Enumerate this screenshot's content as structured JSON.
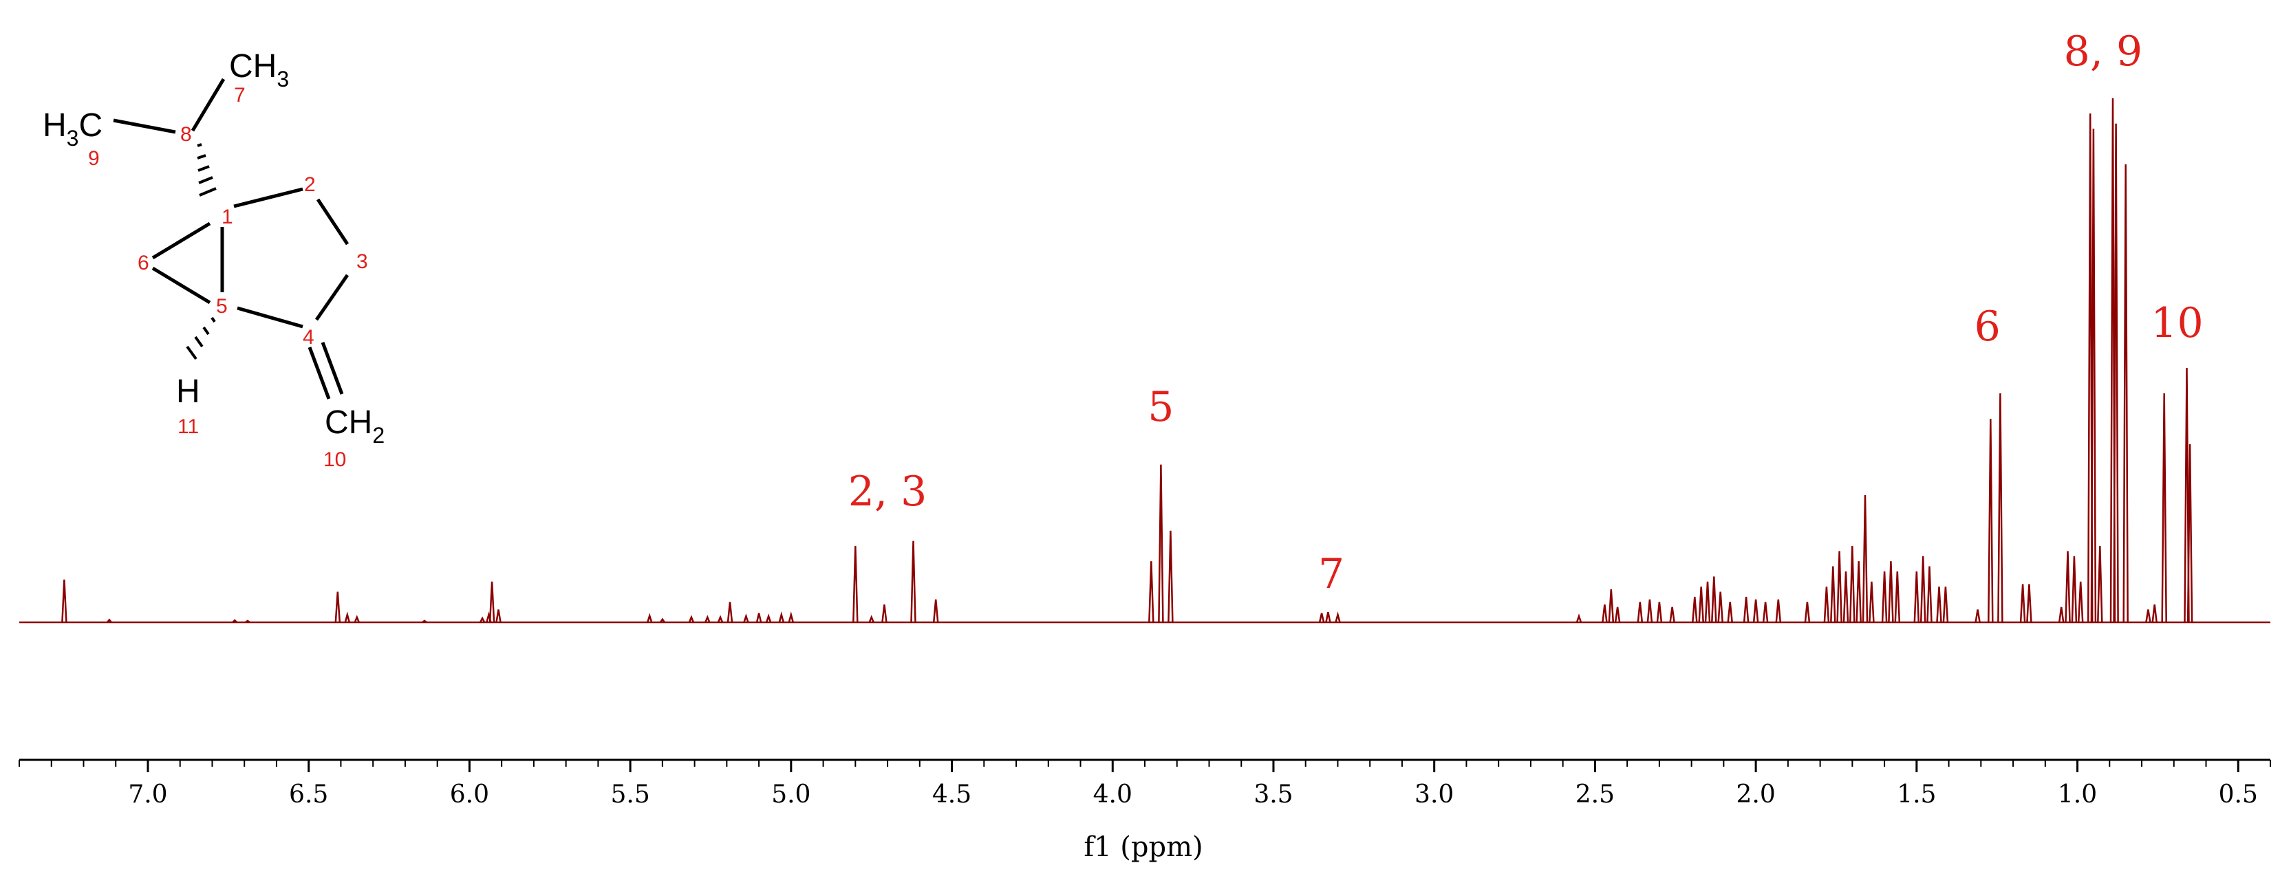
{
  "chart_data": {
    "type": "line",
    "xlabel": "f1 (ppm)",
    "xlim": [
      7.4,
      0.4
    ],
    "x_reversed": true,
    "xticks": [
      "7.0",
      "6.5",
      "6.0",
      "5.5",
      "5.0",
      "4.5",
      "4.0",
      "3.5",
      "3.0",
      "2.5",
      "2.0",
      "1.5",
      "1.0",
      "0.5"
    ],
    "ylabel": "",
    "y_axis_visible": false,
    "grid": false,
    "line_color": "#8b0000",
    "label_color": "#e0201b",
    "series": [
      {
        "values": [
          {
            "x": 7.26,
            "y": 8.4
          },
          {
            "x": 7.12,
            "y": 0.5
          },
          {
            "x": 6.73,
            "y": 0.4
          },
          {
            "x": 6.69,
            "y": 0.3
          },
          {
            "x": 6.41,
            "y": 6.0
          },
          {
            "x": 6.38,
            "y": 1.5
          },
          {
            "x": 6.35,
            "y": 1.0
          },
          {
            "x": 6.14,
            "y": 0.3
          },
          {
            "x": 5.96,
            "y": 0.8
          },
          {
            "x": 5.94,
            "y": 1.5
          },
          {
            "x": 5.93,
            "y": 8.0
          },
          {
            "x": 5.91,
            "y": 2.5
          },
          {
            "x": 5.44,
            "y": 1.3
          },
          {
            "x": 5.4,
            "y": 0.6
          },
          {
            "x": 5.31,
            "y": 1.0
          },
          {
            "x": 5.26,
            "y": 1.0
          },
          {
            "x": 5.22,
            "y": 1.0
          },
          {
            "x": 5.19,
            "y": 4.0
          },
          {
            "x": 5.14,
            "y": 1.2
          },
          {
            "x": 5.1,
            "y": 1.8
          },
          {
            "x": 5.07,
            "y": 1.2
          },
          {
            "x": 5.03,
            "y": 1.5
          },
          {
            "x": 5.0,
            "y": 1.5
          },
          {
            "x": 4.8,
            "y": 15.0
          },
          {
            "x": 4.75,
            "y": 1.0
          },
          {
            "x": 4.71,
            "y": 3.5
          },
          {
            "x": 4.62,
            "y": 16.0
          },
          {
            "x": 4.55,
            "y": 4.5
          },
          {
            "x": 3.88,
            "y": 12.0
          },
          {
            "x": 3.85,
            "y": 31.0
          },
          {
            "x": 3.82,
            "y": 18.0
          },
          {
            "x": 3.35,
            "y": 1.8
          },
          {
            "x": 3.33,
            "y": 2.0
          },
          {
            "x": 3.3,
            "y": 1.5
          },
          {
            "x": 2.55,
            "y": 1.2
          },
          {
            "x": 2.47,
            "y": 3.5
          },
          {
            "x": 2.45,
            "y": 6.5
          },
          {
            "x": 2.43,
            "y": 3.0
          },
          {
            "x": 2.36,
            "y": 4.0
          },
          {
            "x": 2.33,
            "y": 4.5
          },
          {
            "x": 2.3,
            "y": 4.0
          },
          {
            "x": 2.26,
            "y": 3.0
          },
          {
            "x": 2.19,
            "y": 5.0
          },
          {
            "x": 2.17,
            "y": 7.0
          },
          {
            "x": 2.15,
            "y": 8.0
          },
          {
            "x": 2.13,
            "y": 9.0
          },
          {
            "x": 2.11,
            "y": 6.0
          },
          {
            "x": 2.08,
            "y": 4.0
          },
          {
            "x": 2.03,
            "y": 5.0
          },
          {
            "x": 2.0,
            "y": 4.5
          },
          {
            "x": 1.97,
            "y": 4.0
          },
          {
            "x": 1.93,
            "y": 4.5
          },
          {
            "x": 1.84,
            "y": 4.0
          },
          {
            "x": 1.78,
            "y": 7.0
          },
          {
            "x": 1.76,
            "y": 11.0
          },
          {
            "x": 1.74,
            "y": 14.0
          },
          {
            "x": 1.72,
            "y": 10.0
          },
          {
            "x": 1.7,
            "y": 15.0
          },
          {
            "x": 1.68,
            "y": 12.0
          },
          {
            "x": 1.66,
            "y": 25.0
          },
          {
            "x": 1.64,
            "y": 8.0
          },
          {
            "x": 1.6,
            "y": 10.0
          },
          {
            "x": 1.58,
            "y": 12.0
          },
          {
            "x": 1.56,
            "y": 10.0
          },
          {
            "x": 1.5,
            "y": 10.0
          },
          {
            "x": 1.48,
            "y": 13.0
          },
          {
            "x": 1.46,
            "y": 11.0
          },
          {
            "x": 1.43,
            "y": 7.0
          },
          {
            "x": 1.41,
            "y": 7.0
          },
          {
            "x": 1.31,
            "y": 2.5
          },
          {
            "x": 1.27,
            "y": 40.0
          },
          {
            "x": 1.24,
            "y": 45.0
          },
          {
            "x": 1.17,
            "y": 7.5
          },
          {
            "x": 1.15,
            "y": 7.5
          },
          {
            "x": 1.05,
            "y": 3.0
          },
          {
            "x": 1.03,
            "y": 14.0
          },
          {
            "x": 1.01,
            "y": 13.0
          },
          {
            "x": 0.99,
            "y": 8.0
          },
          {
            "x": 0.96,
            "y": 100.0
          },
          {
            "x": 0.95,
            "y": 97.0
          },
          {
            "x": 0.93,
            "y": 15.0
          },
          {
            "x": 0.89,
            "y": 103.0
          },
          {
            "x": 0.88,
            "y": 98.0
          },
          {
            "x": 0.85,
            "y": 90.0
          },
          {
            "x": 0.78,
            "y": 2.5
          },
          {
            "x": 0.76,
            "y": 3.5
          },
          {
            "x": 0.73,
            "y": 45.0
          },
          {
            "x": 0.66,
            "y": 50.0
          },
          {
            "x": 0.65,
            "y": 35.0
          }
        ]
      }
    ],
    "annotations": [
      {
        "text": "2, 3",
        "x": 4.7
      },
      {
        "text": "5",
        "x": 3.85
      },
      {
        "text": "7",
        "x": 3.32
      },
      {
        "text": "6",
        "x": 1.28
      },
      {
        "text": "8, 9",
        "x": 0.92
      },
      {
        "text": "10",
        "x": 0.69
      }
    ]
  },
  "structure": {
    "labels": {
      "ch3_top": "CH3",
      "h3c_left": "H3C",
      "ch2": "CH2",
      "h": "H"
    },
    "atom_numbers": [
      "1",
      "2",
      "3",
      "4",
      "5",
      "6",
      "7",
      "8",
      "9",
      "10",
      "11"
    ]
  }
}
